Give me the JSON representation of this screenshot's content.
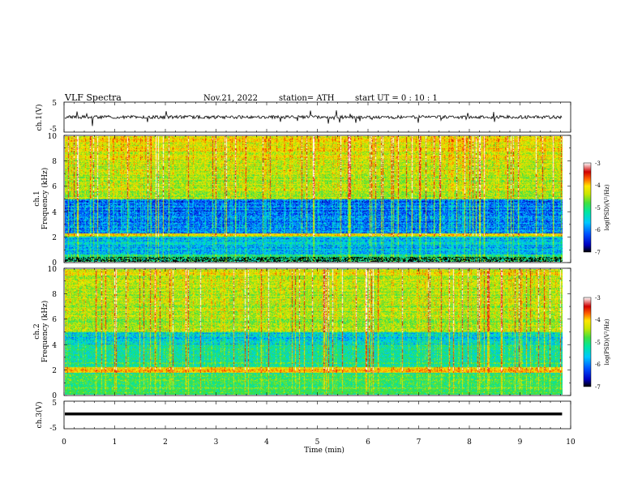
{
  "header": {
    "title": "VLF  Spectra",
    "date": "Nov.21, 2022",
    "station": "station= ATH",
    "start": "start  UT  =    0  : 10 : 1"
  },
  "chart_data": {
    "type": "heatmap",
    "xlabel": "Time  (min)",
    "xlim": [
      0,
      10
    ],
    "xticks": [
      "0",
      "1",
      "2",
      "3",
      "4",
      "5",
      "6",
      "7",
      "8",
      "9",
      "10"
    ],
    "panels": {
      "ch1_waveform": {
        "ylabel": "ch.1(V)",
        "ylim": [
          -5,
          5
        ],
        "yticks": [
          "5",
          "-5"
        ]
      },
      "ch1_spectrogram": {
        "ylabel_top": "ch.1",
        "ylabel": "Frequency  (kHz)",
        "ylim": [
          0,
          10
        ],
        "yticks": [
          "0",
          "2",
          "4",
          "6",
          "8",
          "10"
        ],
        "colorbar_label": "log(PSD)(V²/Hz)",
        "colorbar_ticks": [
          "-3",
          "-4",
          "-5",
          "-6",
          "-7"
        ],
        "clim": [
          -7,
          -3
        ]
      },
      "ch2_spectrogram": {
        "ylabel_top": "ch.2",
        "ylabel": "Frequency  (kHz)",
        "ylim": [
          0,
          10
        ],
        "yticks": [
          "0",
          "2",
          "4",
          "6",
          "8",
          "10"
        ],
        "colorbar_label": "log(PSD)(V²/Hz)",
        "colorbar_ticks": [
          "-3",
          "-4",
          "-5",
          "-6",
          "-7"
        ],
        "clim": [
          -7,
          -3
        ]
      },
      "ch3_waveform": {
        "ylabel": "ch.3(V)",
        "ylim": [
          -5,
          5
        ],
        "yticks": [
          "5",
          "-5"
        ]
      }
    },
    "data_end_min": 9.83,
    "colors": {
      "colormap": [
        "#000000",
        "#0000c0",
        "#0050ff",
        "#00c8ff",
        "#00e6a0",
        "#40e040",
        "#c8e600",
        "#ffe600",
        "#ff6000",
        "#d00000",
        "#ffffff"
      ]
    }
  }
}
